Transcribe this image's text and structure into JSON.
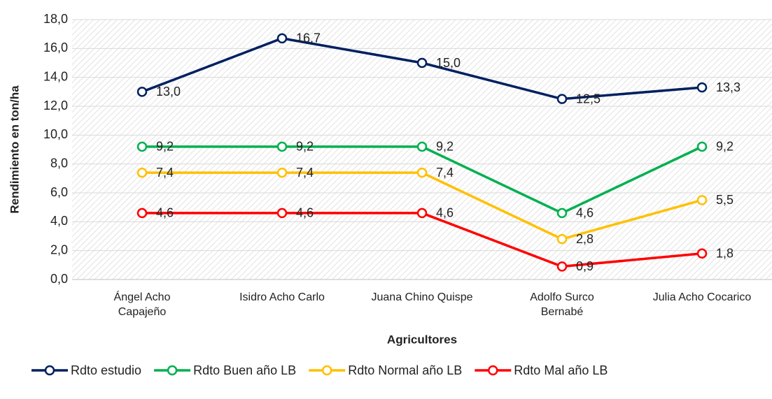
{
  "chart_data": {
    "type": "line",
    "x_label": "Agricultores",
    "y_label": "Rendimiento en ton/ha",
    "categories": [
      "Ángel Acho\nCapajeño",
      "Isidro Acho Carlo",
      "Juana Chino Quispe",
      "Adolfo Surco\nBernabé",
      "Julia Acho Cocarico"
    ],
    "series": [
      {
        "name": "Rdto estudio",
        "color": "#002060",
        "values": [
          13.0,
          16.7,
          15.0,
          12.5,
          13.3
        ],
        "value_labels": [
          "13,0",
          "16,7",
          "15,0",
          "12,5",
          "13,3"
        ]
      },
      {
        "name": "Rdto Buen año LB",
        "color": "#00b050",
        "values": [
          9.2,
          9.2,
          9.2,
          4.6,
          9.2
        ],
        "value_labels": [
          "9,2",
          "9,2",
          "9,2",
          "4,6",
          "9,2"
        ]
      },
      {
        "name": "Rdto Normal año LB",
        "color": "#ffc000",
        "values": [
          7.4,
          7.4,
          7.4,
          2.8,
          5.5
        ],
        "value_labels": [
          "7,4",
          "7,4",
          "7,4",
          "2,8",
          "5,5"
        ]
      },
      {
        "name": "Rdto Mal año LB",
        "color": "#ff0000",
        "values": [
          4.6,
          4.6,
          4.6,
          0.9,
          1.8
        ],
        "value_labels": [
          "4,6",
          "4,6",
          "4,6",
          "0,9",
          "1,8"
        ]
      }
    ],
    "ylim": [
      0,
      18
    ],
    "yticks": [
      {
        "value": 0,
        "label": "0,0"
      },
      {
        "value": 2,
        "label": "2,0"
      },
      {
        "value": 4,
        "label": "4,0"
      },
      {
        "value": 6,
        "label": "6,0"
      },
      {
        "value": 8,
        "label": "8,0"
      },
      {
        "value": 10,
        "label": "10,0"
      },
      {
        "value": 12,
        "label": "12,0"
      },
      {
        "value": 14,
        "label": "14,0"
      },
      {
        "value": 16,
        "label": "16,0"
      },
      {
        "value": 18,
        "label": "18,0"
      }
    ],
    "grid": true,
    "legend": "bottom"
  }
}
